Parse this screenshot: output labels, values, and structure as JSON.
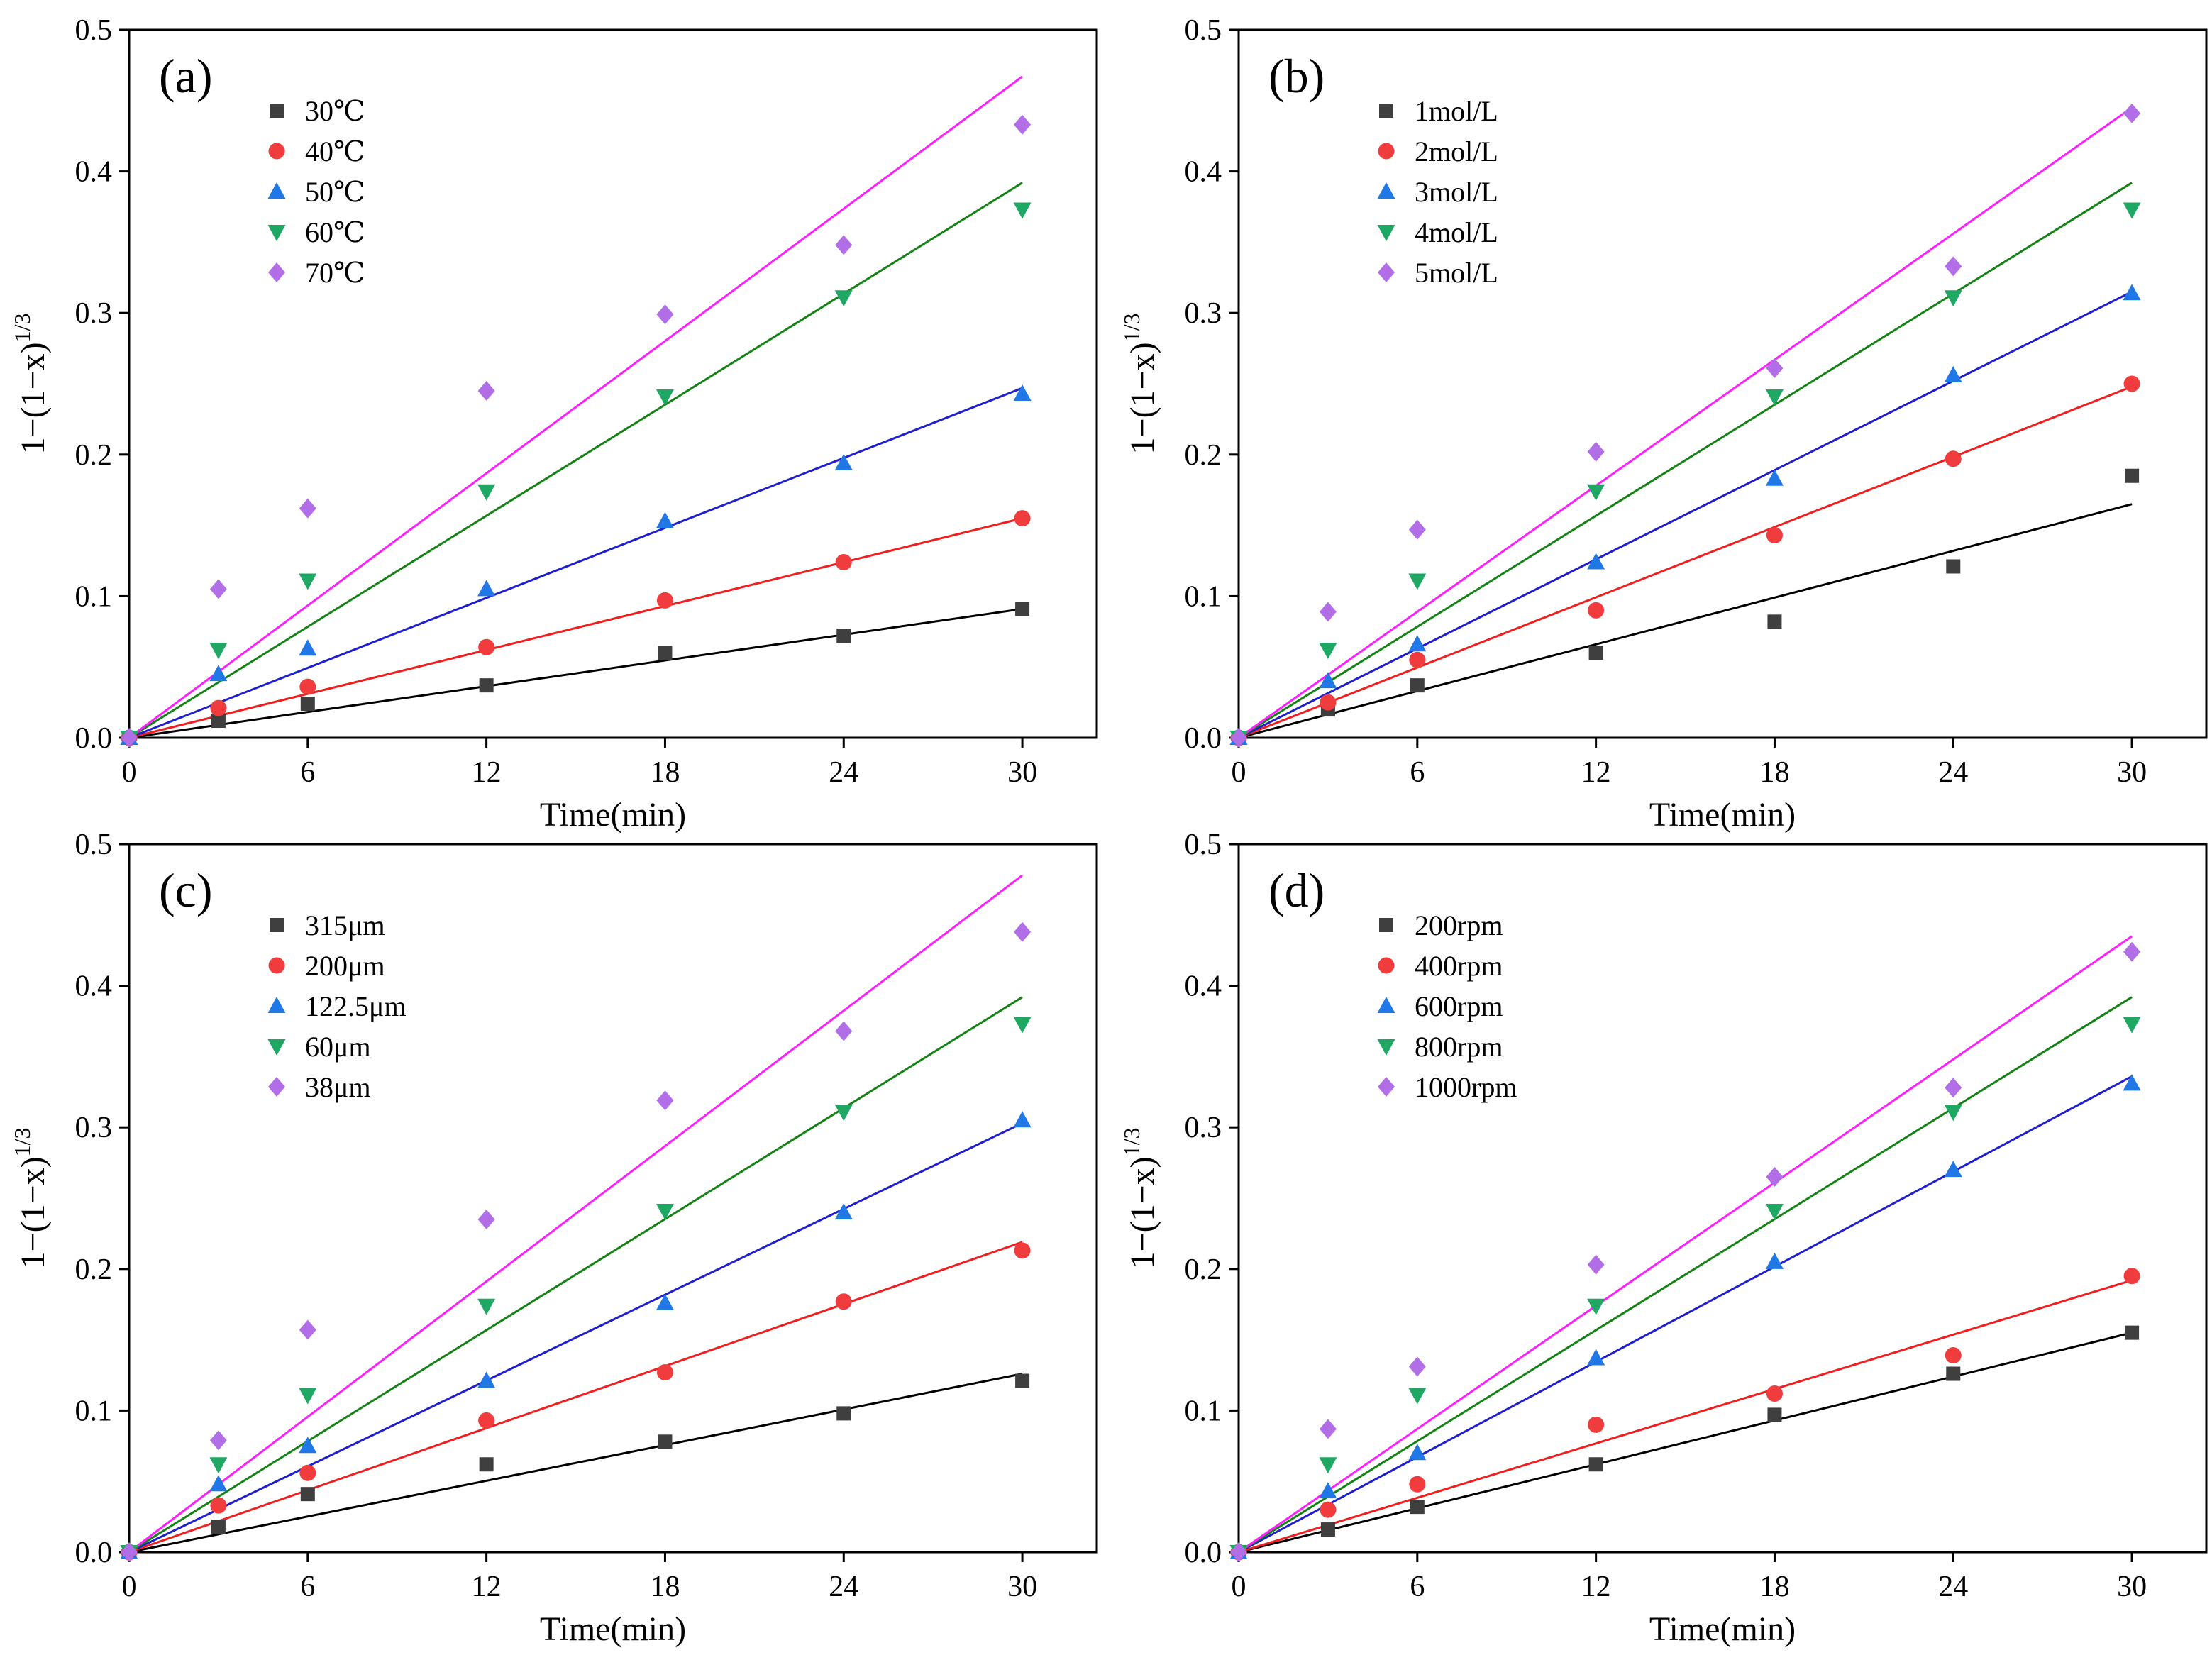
{
  "chart_data": [
    {
      "type": "scatter",
      "panel_label": "(a)",
      "xlabel": "Time(min)",
      "ylabel": "1−(1−x)",
      "ylabel_sup": "1/3",
      "x_ticks": [
        0,
        6,
        12,
        18,
        24,
        30
      ],
      "y_ticks": [
        0.0,
        0.1,
        0.2,
        0.3,
        0.4,
        0.5
      ],
      "y_tick_labels": [
        "0.0",
        "0.1",
        "0.2",
        "0.3",
        "0.4",
        "0.5"
      ],
      "xlim": [
        0,
        32.5
      ],
      "ylim": [
        0,
        0.5
      ],
      "legend_position": "top-left",
      "x": [
        3,
        6,
        12,
        18,
        24,
        30
      ],
      "series": [
        {
          "name": "30℃",
          "marker": "square",
          "color": "#3f3f3f",
          "line_color": "#000000",
          "values": [
            0.012,
            0.024,
            0.037,
            0.06,
            0.072,
            0.091
          ],
          "fit_end": 0.091
        },
        {
          "name": "40℃",
          "marker": "circle",
          "color": "#f03c3c",
          "line_color": "#f01e1e",
          "values": [
            0.021,
            0.036,
            0.064,
            0.097,
            0.124,
            0.155
          ],
          "fit_end": 0.155
        },
        {
          "name": "50℃",
          "marker": "triangle-up",
          "color": "#1f78e6",
          "line_color": "#1f1fd0",
          "values": [
            0.045,
            0.063,
            0.105,
            0.153,
            0.194,
            0.243
          ],
          "fit_end": 0.247
        },
        {
          "name": "60℃",
          "marker": "triangle-down",
          "color": "#1fa864",
          "line_color": "#148214",
          "values": [
            0.062,
            0.111,
            0.174,
            0.241,
            0.311,
            0.373
          ],
          "fit_end": 0.392
        },
        {
          "name": "70℃",
          "marker": "diamond",
          "color": "#b26ee6",
          "line_color": "#ff1eff",
          "values": [
            0.105,
            0.162,
            0.245,
            0.299,
            0.348,
            0.433
          ],
          "fit_end": 0.467
        }
      ]
    },
    {
      "type": "scatter",
      "panel_label": "(b)",
      "xlabel": "Time(min)",
      "ylabel": "1−(1−x)",
      "ylabel_sup": "1/3",
      "x_ticks": [
        0,
        6,
        12,
        18,
        24,
        30
      ],
      "y_ticks": [
        0.0,
        0.1,
        0.2,
        0.3,
        0.4,
        0.5
      ],
      "y_tick_labels": [
        "0.0",
        "0.1",
        "0.2",
        "0.3",
        "0.4",
        "0.5"
      ],
      "xlim": [
        0,
        32.5
      ],
      "ylim": [
        0,
        0.5
      ],
      "legend_position": "top-left",
      "x": [
        3,
        6,
        12,
        18,
        24,
        30
      ],
      "series": [
        {
          "name": "1mol/L",
          "marker": "square",
          "color": "#3f3f3f",
          "line_color": "#000000",
          "values": [
            0.02,
            0.037,
            0.06,
            0.082,
            0.121,
            0.185
          ],
          "fit_end": 0.165
        },
        {
          "name": "2mol/L",
          "marker": "circle",
          "color": "#f03c3c",
          "line_color": "#f01e1e",
          "values": [
            0.025,
            0.055,
            0.09,
            0.143,
            0.197,
            0.25
          ],
          "fit_end": 0.248
        },
        {
          "name": "3mol/L",
          "marker": "triangle-up",
          "color": "#1f78e6",
          "line_color": "#1f1fd0",
          "values": [
            0.04,
            0.066,
            0.124,
            0.183,
            0.256,
            0.314
          ],
          "fit_end": 0.315
        },
        {
          "name": "4mol/L",
          "marker": "triangle-down",
          "color": "#1fa864",
          "line_color": "#148214",
          "values": [
            0.062,
            0.111,
            0.174,
            0.241,
            0.311,
            0.373
          ],
          "fit_end": 0.392
        },
        {
          "name": "5mol/L",
          "marker": "diamond",
          "color": "#b26ee6",
          "line_color": "#ff1eff",
          "values": [
            0.089,
            0.147,
            0.202,
            0.261,
            0.333,
            0.441
          ],
          "fit_end": 0.445
        }
      ]
    },
    {
      "type": "scatter",
      "panel_label": "(c)",
      "xlabel": "Time(min)",
      "ylabel": "1−(1−x)",
      "ylabel_sup": "1/3",
      "x_ticks": [
        0,
        6,
        12,
        18,
        24,
        30
      ],
      "y_ticks": [
        0.0,
        0.1,
        0.2,
        0.3,
        0.4,
        0.5
      ],
      "y_tick_labels": [
        "0.0",
        "0.1",
        "0.2",
        "0.3",
        "0.4",
        "0.5"
      ],
      "xlim": [
        0,
        32.5
      ],
      "ylim": [
        0,
        0.5
      ],
      "legend_position": "top-left",
      "x": [
        3,
        6,
        12,
        18,
        24,
        30
      ],
      "series": [
        {
          "name": "315μm",
          "marker": "square",
          "color": "#3f3f3f",
          "line_color": "#000000",
          "values": [
            0.018,
            0.041,
            0.062,
            0.078,
            0.098,
            0.121
          ],
          "fit_end": 0.126
        },
        {
          "name": "200μm",
          "marker": "circle",
          "color": "#f03c3c",
          "line_color": "#f01e1e",
          "values": [
            0.033,
            0.056,
            0.093,
            0.127,
            0.177,
            0.213
          ],
          "fit_end": 0.219
        },
        {
          "name": "122.5μm",
          "marker": "triangle-up",
          "color": "#1f78e6",
          "line_color": "#1f1fd0",
          "values": [
            0.048,
            0.075,
            0.121,
            0.176,
            0.24,
            0.305
          ],
          "fit_end": 0.303
        },
        {
          "name": "60μm",
          "marker": "triangle-down",
          "color": "#1fa864",
          "line_color": "#148214",
          "values": [
            0.062,
            0.111,
            0.174,
            0.241,
            0.311,
            0.373
          ],
          "fit_end": 0.392
        },
        {
          "name": "38μm",
          "marker": "diamond",
          "color": "#b26ee6",
          "line_color": "#ff1eff",
          "values": [
            0.079,
            0.157,
            0.235,
            0.319,
            0.368,
            0.438
          ],
          "fit_end": 0.478
        }
      ]
    },
    {
      "type": "scatter",
      "panel_label": "(d)",
      "xlabel": "Time(min)",
      "ylabel": "1−(1−x)",
      "ylabel_sup": "1/3",
      "x_ticks": [
        0,
        6,
        12,
        18,
        24,
        30
      ],
      "y_ticks": [
        0.0,
        0.1,
        0.2,
        0.3,
        0.4,
        0.5
      ],
      "y_tick_labels": [
        "0.0",
        "0.1",
        "0.2",
        "0.3",
        "0.4",
        "0.5"
      ],
      "xlim": [
        0,
        32.5
      ],
      "ylim": [
        0,
        0.5
      ],
      "legend_position": "top-left",
      "x": [
        3,
        6,
        12,
        18,
        24,
        30
      ],
      "series": [
        {
          "name": "200rpm",
          "marker": "square",
          "color": "#3f3f3f",
          "line_color": "#000000",
          "values": [
            0.016,
            0.032,
            0.062,
            0.097,
            0.126,
            0.155
          ],
          "fit_end": 0.155
        },
        {
          "name": "400rpm",
          "marker": "circle",
          "color": "#f03c3c",
          "line_color": "#f01e1e",
          "values": [
            0.03,
            0.048,
            0.09,
            0.112,
            0.139,
            0.195
          ],
          "fit_end": 0.192
        },
        {
          "name": "600rpm",
          "marker": "triangle-up",
          "color": "#1f78e6",
          "line_color": "#1f1fd0",
          "values": [
            0.043,
            0.07,
            0.137,
            0.205,
            0.27,
            0.331
          ],
          "fit_end": 0.336
        },
        {
          "name": "800rpm",
          "marker": "triangle-down",
          "color": "#1fa864",
          "line_color": "#148214",
          "values": [
            0.062,
            0.111,
            0.174,
            0.241,
            0.311,
            0.373
          ],
          "fit_end": 0.392
        },
        {
          "name": "1000rpm",
          "marker": "diamond",
          "color": "#b26ee6",
          "line_color": "#ff1eff",
          "values": [
            0.087,
            0.131,
            0.203,
            0.265,
            0.328,
            0.424
          ],
          "fit_end": 0.435
        }
      ]
    }
  ]
}
